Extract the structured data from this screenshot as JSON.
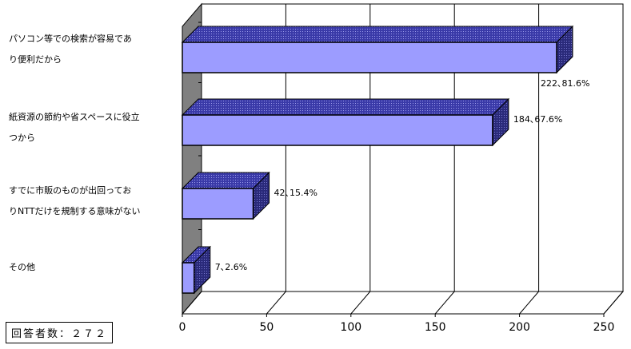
{
  "chart_data": {
    "type": "bar",
    "orientation": "horizontal",
    "style": "3d",
    "categories": [
      [
        "パソコン等での検索が容易であ",
        "り便利だから"
      ],
      [
        "紙資源の節約や省スペースに役立",
        "つから"
      ],
      [
        "すでに市販のものが出回ってお",
        "りNTTだけを規制する意味がない"
      ],
      [
        "その他"
      ]
    ],
    "values": [
      222,
      184,
      42,
      7
    ],
    "data_labels": [
      "222､81.6%",
      "184､67.6%",
      "42､15.4%",
      "7､2.6%"
    ],
    "xlim": [
      0,
      250
    ],
    "x_ticks": [
      "0",
      "50",
      "100",
      "150",
      "200",
      "250"
    ],
    "grid": true,
    "legend": "none",
    "colors": {
      "bar_front": "#9c9cff",
      "bar_side": "#2a2a7a",
      "bar_top": "#4848b8",
      "wall": "#808080",
      "grid": "#000000"
    }
  },
  "respondents_label": "回答者数：２７２"
}
